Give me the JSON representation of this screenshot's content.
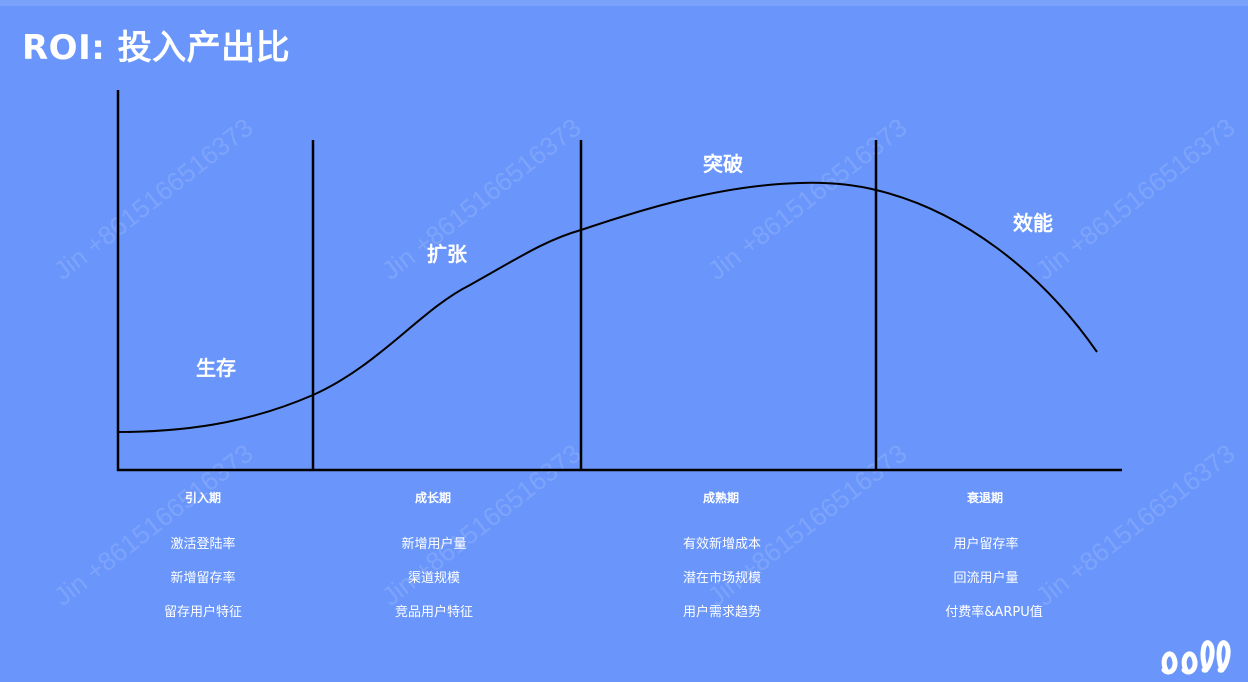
{
  "title": "ROI: 投入产出比",
  "stages": [
    {
      "label": "生存"
    },
    {
      "label": "扩张"
    },
    {
      "label": "突破"
    },
    {
      "label": "效能"
    }
  ],
  "phases": [
    {
      "label": "引入期",
      "metrics": [
        "激活登陆率",
        "新增留存率",
        "留存用户特征"
      ]
    },
    {
      "label": "成长期",
      "metrics": [
        "新增用户量",
        "渠道规模",
        "竞品用户特征"
      ]
    },
    {
      "label": "成熟期",
      "metrics": [
        "有效新增成本",
        "潜在市场规模",
        "用户需求趋势"
      ]
    },
    {
      "label": "衰退期",
      "metrics": [
        "用户留存率",
        "回流用户量",
        "付费率&ARPU值"
      ]
    }
  ],
  "watermark": "Jin +8615166516373",
  "colors": {
    "background": "#6a96fb",
    "line": "#000000",
    "text": "#ffffff"
  }
}
